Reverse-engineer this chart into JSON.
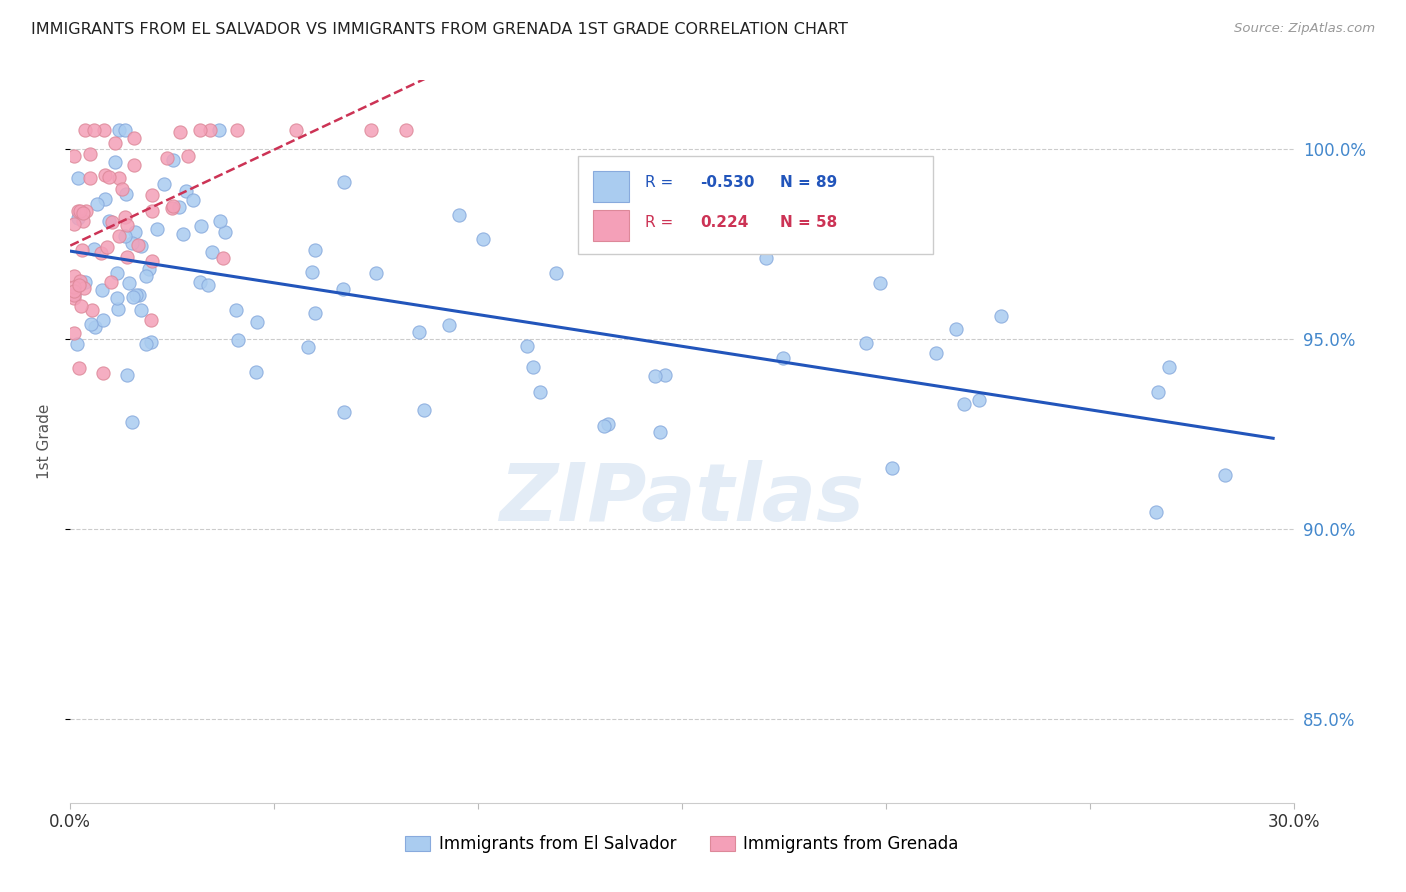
{
  "title": "IMMIGRANTS FROM EL SALVADOR VS IMMIGRANTS FROM GRENADA 1ST GRADE CORRELATION CHART",
  "source": "Source: ZipAtlas.com",
  "ylabel": "1st Grade",
  "xlim": [
    0.0,
    0.3
  ],
  "ylim": [
    0.828,
    1.018
  ],
  "yticks": [
    0.85,
    0.9,
    0.95,
    1.0
  ],
  "ytick_labels": [
    "85.0%",
    "90.0%",
    "95.0%",
    "100.0%"
  ],
  "xticks": [
    0.0,
    0.05,
    0.1,
    0.15,
    0.2,
    0.25,
    0.3
  ],
  "blue_R": -0.53,
  "blue_N": 89,
  "pink_R": 0.224,
  "pink_N": 58,
  "blue_color": "#aaccf0",
  "pink_color": "#f4a0b8",
  "blue_line_color": "#2255bb",
  "pink_line_color": "#cc3355",
  "background_color": "#ffffff",
  "grid_color": "#cccccc",
  "title_color": "#222222",
  "axis_label_color": "#555555",
  "right_axis_color": "#4488cc",
  "watermark": "ZIPatlas",
  "legend_blue_label": "Immigrants from El Salvador",
  "legend_pink_label": "Immigrants from Grenada"
}
